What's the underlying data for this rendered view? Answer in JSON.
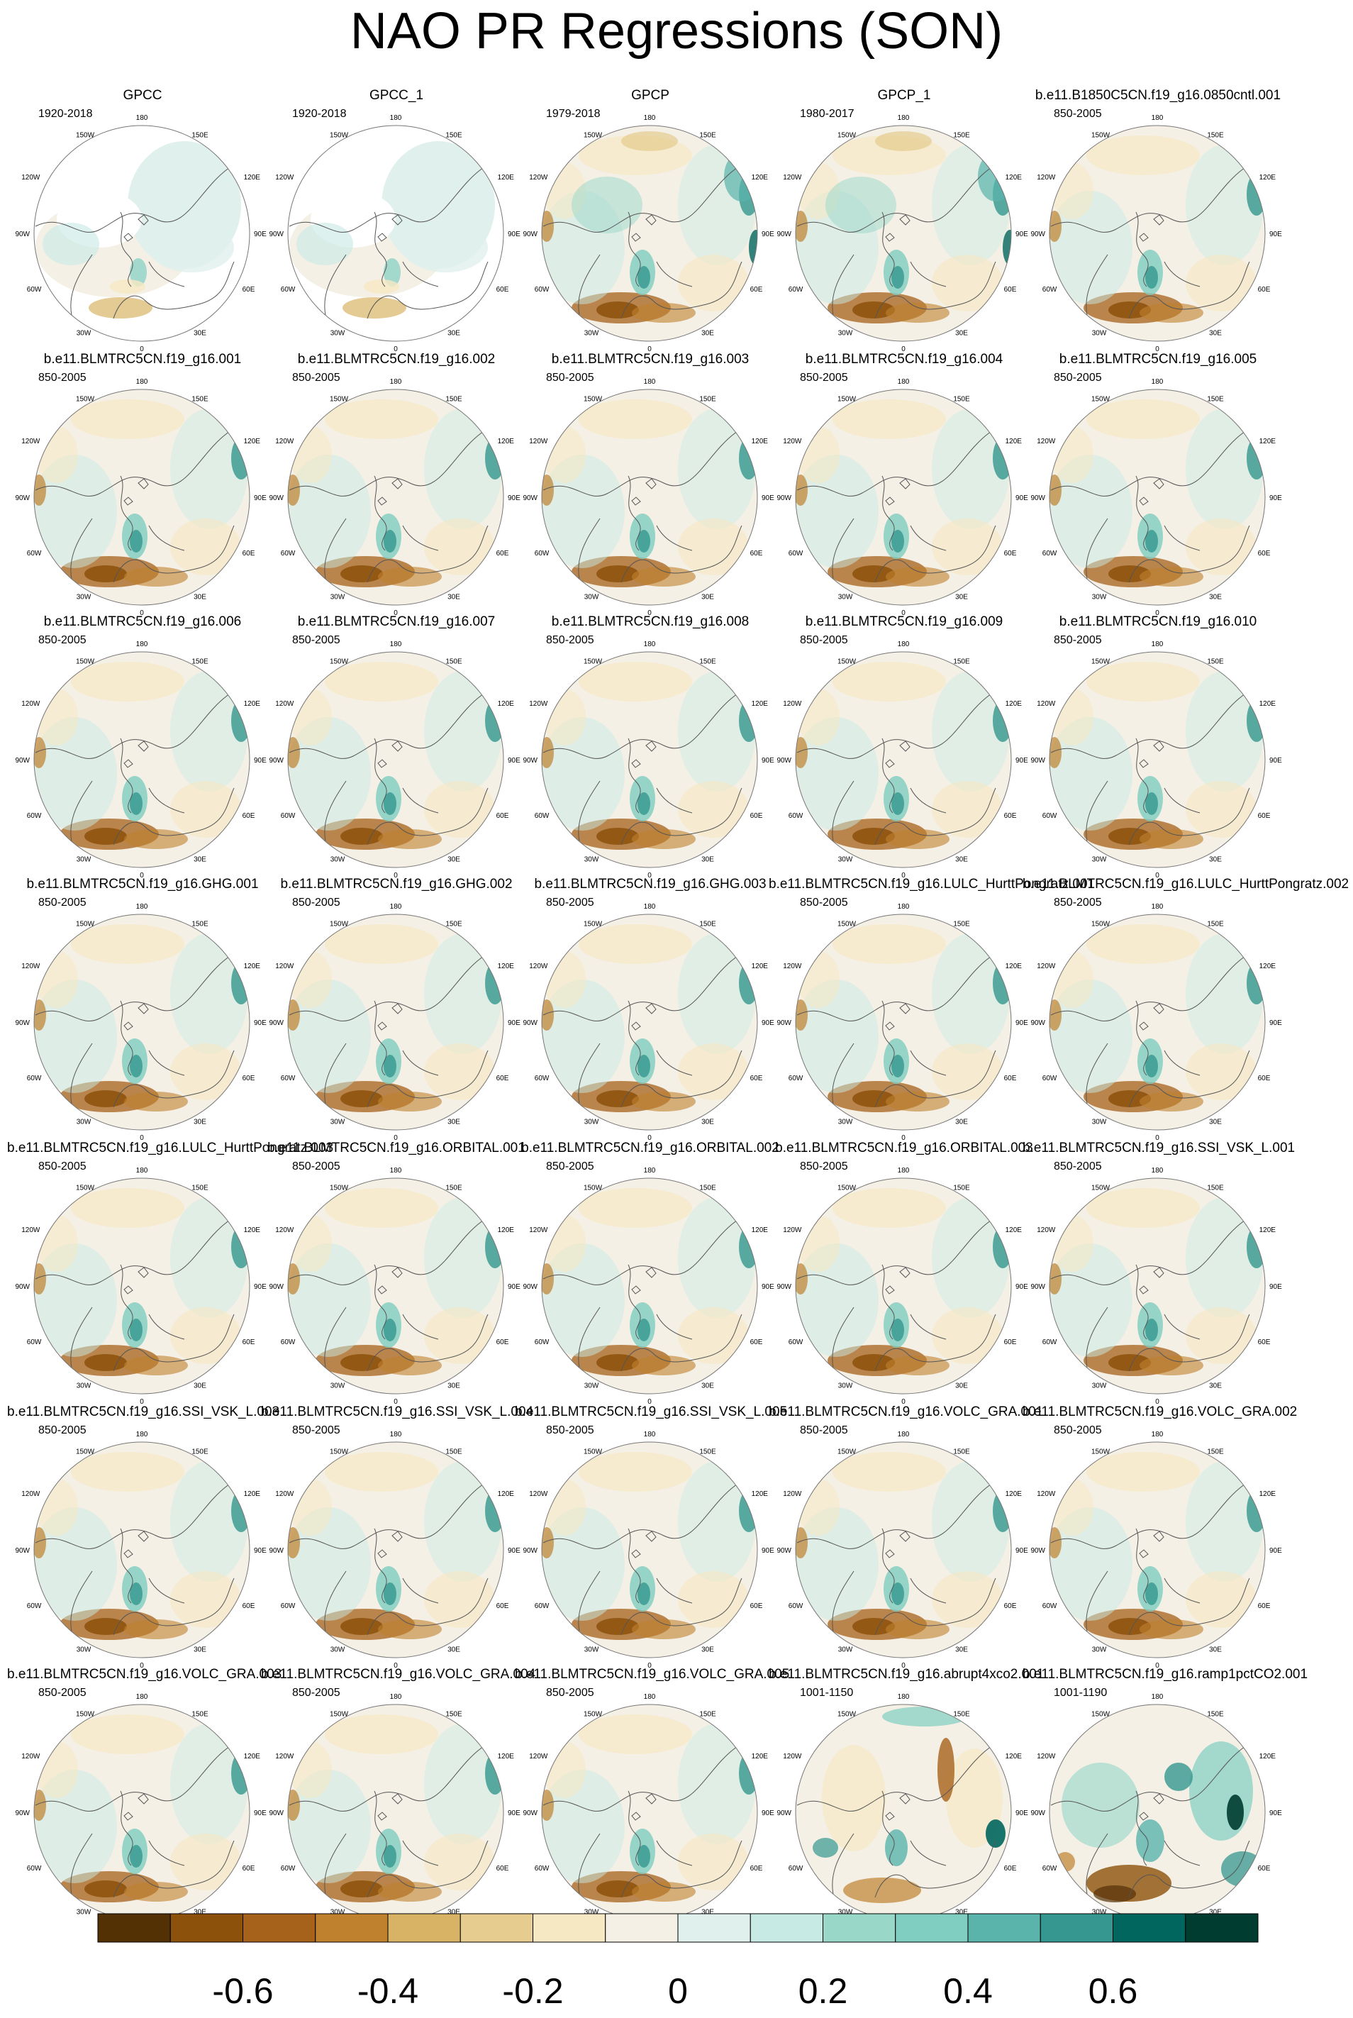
{
  "title": "NAO PR Regressions (SON)",
  "panels": [
    {
      "title": "GPCC",
      "years": "1920-2018",
      "mode": "gpcc"
    },
    {
      "title": "GPCC_1",
      "years": "1920-2018",
      "mode": "gpcc"
    },
    {
      "title": "GPCP",
      "years": "1979-2018",
      "mode": "obs"
    },
    {
      "title": "GPCP_1",
      "years": "1980-2017",
      "mode": "obs"
    },
    {
      "title": "b.e11.B1850C5CN.f19_g16.0850cntl.001",
      "years": "850-2005",
      "mode": "model"
    },
    {
      "title": "b.e11.BLMTRC5CN.f19_g16.001",
      "years": "850-2005",
      "mode": "model"
    },
    {
      "title": "b.e11.BLMTRC5CN.f19_g16.002",
      "years": "850-2005",
      "mode": "model"
    },
    {
      "title": "b.e11.BLMTRC5CN.f19_g16.003",
      "years": "850-2005",
      "mode": "model"
    },
    {
      "title": "b.e11.BLMTRC5CN.f19_g16.004",
      "years": "850-2005",
      "mode": "model"
    },
    {
      "title": "b.e11.BLMTRC5CN.f19_g16.005",
      "years": "850-2005",
      "mode": "model"
    },
    {
      "title": "b.e11.BLMTRC5CN.f19_g16.006",
      "years": "850-2005",
      "mode": "model"
    },
    {
      "title": "b.e11.BLMTRC5CN.f19_g16.007",
      "years": "850-2005",
      "mode": "model"
    },
    {
      "title": "b.e11.BLMTRC5CN.f19_g16.008",
      "years": "850-2005",
      "mode": "model"
    },
    {
      "title": "b.e11.BLMTRC5CN.f19_g16.009",
      "years": "850-2005",
      "mode": "model"
    },
    {
      "title": "b.e11.BLMTRC5CN.f19_g16.010",
      "years": "850-2005",
      "mode": "model"
    },
    {
      "title": "b.e11.BLMTRC5CN.f19_g16.GHG.001",
      "years": "850-2005",
      "mode": "model"
    },
    {
      "title": "b.e11.BLMTRC5CN.f19_g16.GHG.002",
      "years": "850-2005",
      "mode": "model"
    },
    {
      "title": "b.e11.BLMTRC5CN.f19_g16.GHG.003",
      "years": "850-2005",
      "mode": "model"
    },
    {
      "title": "b.e11.BLMTRC5CN.f19_g16.LULC_HurttPongratz.001",
      "years": "850-2005",
      "mode": "model"
    },
    {
      "title": "b.e11.BLMTRC5CN.f19_g16.LULC_HurttPongratz.002",
      "years": "850-2005",
      "mode": "model"
    },
    {
      "title": "b.e11.BLMTRC5CN.f19_g16.LULC_HurttPongratz.003",
      "years": "850-2005",
      "mode": "model"
    },
    {
      "title": "b.e11.BLMTRC5CN.f19_g16.ORBITAL.001",
      "years": "850-2005",
      "mode": "model"
    },
    {
      "title": "b.e11.BLMTRC5CN.f19_g16.ORBITAL.002",
      "years": "850-2005",
      "mode": "model"
    },
    {
      "title": "b.e11.BLMTRC5CN.f19_g16.ORBITAL.003",
      "years": "850-2005",
      "mode": "model"
    },
    {
      "title": "b.e11.BLMTRC5CN.f19_g16.SSI_VSK_L.001",
      "years": "850-2005",
      "mode": "model"
    },
    {
      "title": "b.e11.BLMTRC5CN.f19_g16.SSI_VSK_L.003",
      "years": "850-2005",
      "mode": "model"
    },
    {
      "title": "b.e11.BLMTRC5CN.f19_g16.SSI_VSK_L.004",
      "years": "850-2005",
      "mode": "model"
    },
    {
      "title": "b.e11.BLMTRC5CN.f19_g16.SSI_VSK_L.005",
      "years": "850-2005",
      "mode": "model"
    },
    {
      "title": "b.e11.BLMTRC5CN.f19_g16.VOLC_GRA.001",
      "years": "850-2005",
      "mode": "model"
    },
    {
      "title": "b.e11.BLMTRC5CN.f19_g16.VOLC_GRA.002",
      "years": "850-2005",
      "mode": "model"
    },
    {
      "title": "b.e11.BLMTRC5CN.f19_g16.VOLC_GRA.003",
      "years": "850-2005",
      "mode": "model"
    },
    {
      "title": "b.e11.BLMTRC5CN.f19_g16.VOLC_GRA.004",
      "years": "850-2005",
      "mode": "model"
    },
    {
      "title": "b.e11.BLMTRC5CN.f19_g16.VOLC_GRA.005",
      "years": "850-2005",
      "mode": "model"
    },
    {
      "title": "b.e11.BLMTRC5CN.f19_g16.abrupt4xco2.001",
      "years": "1001-1150",
      "mode": "abrupt"
    },
    {
      "title": "b.e11.BLMTRC5CN.f19_g16.ramp1pctCO2.001",
      "years": "1001-1190",
      "mode": "ramp"
    }
  ],
  "map_labels": [
    "180",
    "150W",
    "150E",
    "120W",
    "120E",
    "90W",
    "90E",
    "60W",
    "60E",
    "30W",
    "30E",
    "0"
  ],
  "colorbar": {
    "colors": [
      "#543005",
      "#8c510a",
      "#a6611a",
      "#bf812d",
      "#d8b365",
      "#e6cc8f",
      "#f6e8c3",
      "#f5f0e6",
      "#e0f0ec",
      "#c7eae5",
      "#99d8c9",
      "#80cdc1",
      "#5ab4ac",
      "#35978f",
      "#01665e",
      "#003c30"
    ],
    "tick_labels": [
      "-0.6",
      "-0.4",
      "-0.2",
      "0",
      "0.2",
      "0.4",
      "0.6"
    ],
    "tick_values": [
      -0.6,
      -0.4,
      -0.2,
      0,
      0.2,
      0.4,
      0.6
    ],
    "min": -0.8,
    "max": 0.8
  }
}
